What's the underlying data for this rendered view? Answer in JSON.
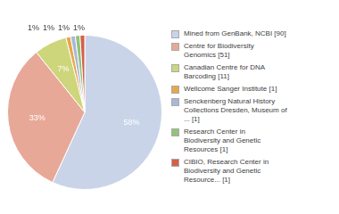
{
  "chart_data": {
    "type": "pie",
    "categories": [
      "Mined from GenBank, NCBI [90]",
      "Centre for Biodiversity\nGenomics [51]",
      "Canadian Centre for DNA\nBarcoding [11]",
      "Wellcome Sanger Institute [1]",
      "Senckenberg Natural History\nCollections Dresden, Museum of\n... [1]",
      "Research Center in\nBiodiversity and Genetic\nResources [1]",
      "CIBIO, Research Center in\nBiodiversity and Genetic\nResource... [1]"
    ],
    "values": [
      58,
      33,
      7,
      1,
      1,
      1,
      1
    ],
    "value_labels": [
      "58%",
      "33%",
      "7%",
      "1%",
      "1%",
      "1%",
      "1%"
    ],
    "colors": [
      "#c9d4e8",
      "#e8a898",
      "#cdd67a",
      "#e8a84a",
      "#a8b8d8",
      "#90c478",
      "#d4604a"
    ],
    "data_labels": true,
    "legend": "right"
  }
}
